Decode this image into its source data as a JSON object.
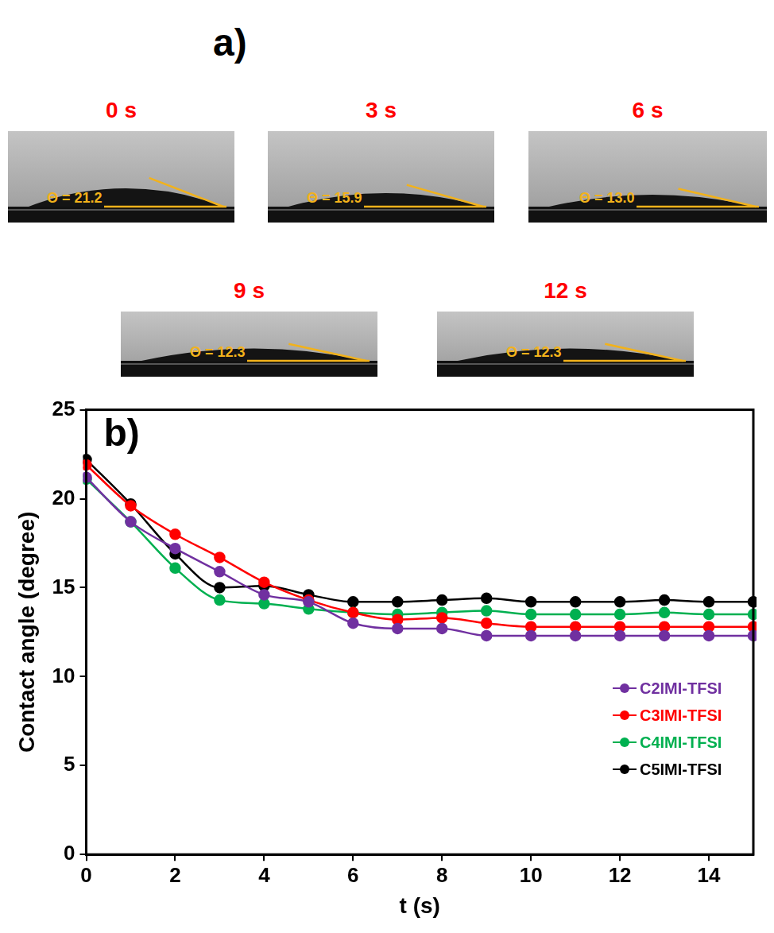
{
  "panel_a": {
    "label": "a)",
    "frames": [
      {
        "time": "0 s",
        "angle": 21.2,
        "angle_label": "Θ = 21.2"
      },
      {
        "time": "3 s",
        "angle": 15.9,
        "angle_label": "Θ = 15.9"
      },
      {
        "time": "6 s",
        "angle": 13.0,
        "angle_label": "Θ = 13.0"
      },
      {
        "time": "9 s",
        "angle": 12.3,
        "angle_label": "Θ = 12.3"
      },
      {
        "time": "12 s",
        "angle": 12.3,
        "angle_label": "Θ = 12.3"
      }
    ]
  },
  "chart_data": {
    "type": "line",
    "panel_label": "b)",
    "x_label": "t (s)",
    "y_label": "Contact angle (degree)",
    "x": [
      0,
      1,
      2,
      3,
      4,
      5,
      6,
      7,
      8,
      9,
      10,
      11,
      12,
      13,
      14,
      15
    ],
    "series": [
      {
        "name": "C2IMI-TFSI",
        "color": "#7030a0",
        "marker": "circle",
        "line_style": "solid",
        "values": [
          21.2,
          18.7,
          17.2,
          15.9,
          14.6,
          14.2,
          13.0,
          12.7,
          12.7,
          12.3,
          12.3,
          12.3,
          12.3,
          12.3,
          12.3,
          12.3
        ]
      },
      {
        "name": "C3IMI-TFSI",
        "color": "#ff0000",
        "marker": "circle",
        "line_style": "solid",
        "values": [
          21.9,
          19.6,
          18.0,
          16.7,
          15.3,
          14.3,
          13.6,
          13.2,
          13.3,
          13.0,
          12.8,
          12.8,
          12.8,
          12.8,
          12.8,
          12.8
        ]
      },
      {
        "name": "C4IMI-TFSI",
        "color": "#00b050",
        "marker": "circle",
        "line_style": "solid",
        "values": [
          21.1,
          18.7,
          16.1,
          14.3,
          14.1,
          13.8,
          13.6,
          13.5,
          13.6,
          13.7,
          13.5,
          13.5,
          13.5,
          13.6,
          13.5,
          13.5
        ]
      },
      {
        "name": "C5IMI-TFSI",
        "color": "#000000",
        "marker": "circle",
        "line_style": "solid",
        "values": [
          22.2,
          19.7,
          16.9,
          15.0,
          15.1,
          14.6,
          14.2,
          14.2,
          14.3,
          14.4,
          14.2,
          14.2,
          14.2,
          14.3,
          14.2,
          14.2
        ]
      }
    ],
    "xlim": [
      0,
      15
    ],
    "xticks": [
      0,
      2,
      4,
      6,
      8,
      10,
      12,
      14
    ],
    "ylim": [
      0,
      25
    ],
    "yticks": [
      0,
      5,
      10,
      15,
      20,
      25
    ],
    "grid": false,
    "legend": "lower right"
  }
}
